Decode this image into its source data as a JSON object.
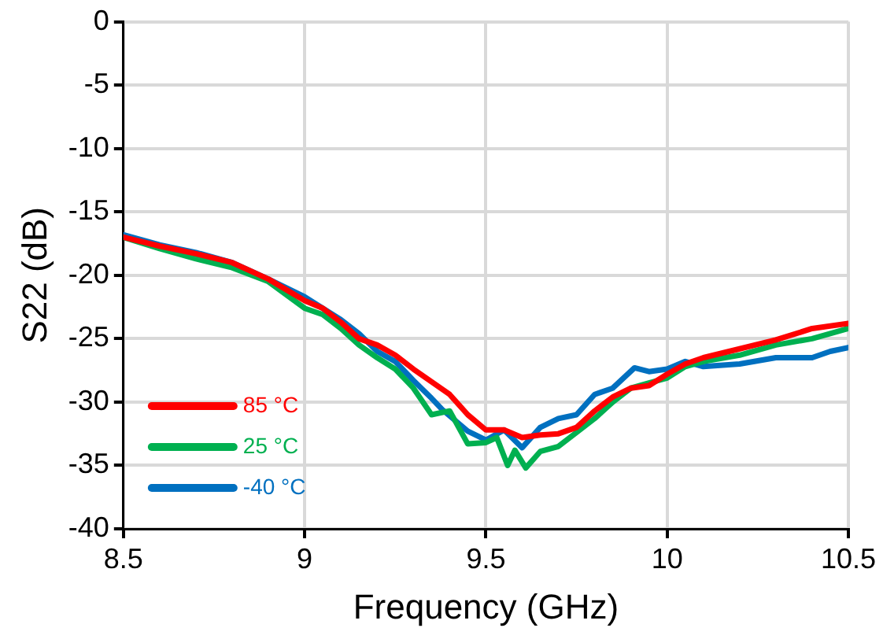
{
  "chart_data": {
    "type": "line",
    "xlabel": "Frequency (GHz)",
    "ylabel": "S22 (dB)",
    "xlim": [
      8.5,
      10.5
    ],
    "xticks": [
      8.5,
      9,
      9.5,
      10,
      10.5
    ],
    "ylim": [
      -40,
      0
    ],
    "yticks": [
      -40,
      -35,
      -30,
      -25,
      -20,
      -15,
      -10,
      -5,
      0
    ],
    "grid": true,
    "legend": "bottom left",
    "marker": "none",
    "line_style": "solid",
    "series": [
      {
        "name": "85 °C",
        "color": "#ff0000",
        "x": [
          8.5,
          8.6,
          8.7,
          8.8,
          8.9,
          9.0,
          9.05,
          9.1,
          9.15,
          9.2,
          9.25,
          9.3,
          9.35,
          9.4,
          9.45,
          9.5,
          9.55,
          9.6,
          9.65,
          9.7,
          9.75,
          9.8,
          9.85,
          9.9,
          9.95,
          10.0,
          10.05,
          10.1,
          10.2,
          10.3,
          10.4,
          10.5
        ],
        "values": [
          -17.0,
          -17.7,
          -18.3,
          -19.0,
          -20.3,
          -22.0,
          -22.6,
          -23.7,
          -25.0,
          -25.5,
          -26.3,
          -27.4,
          -28.4,
          -29.4,
          -31.0,
          -32.2,
          -32.2,
          -32.8,
          -32.6,
          -32.5,
          -32.0,
          -30.7,
          -29.6,
          -28.9,
          -28.7,
          -27.8,
          -27.0,
          -26.5,
          -25.8,
          -25.1,
          -24.2,
          -23.8
        ]
      },
      {
        "name": "25 °C",
        "color": "#00b050",
        "x": [
          8.5,
          8.6,
          8.7,
          8.8,
          8.9,
          9.0,
          9.05,
          9.1,
          9.15,
          9.2,
          9.25,
          9.3,
          9.35,
          9.4,
          9.45,
          9.5,
          9.53,
          9.56,
          9.58,
          9.61,
          9.65,
          9.7,
          9.75,
          9.8,
          9.85,
          9.9,
          9.95,
          10.0,
          10.05,
          10.1,
          10.2,
          10.3,
          10.4,
          10.5
        ],
        "values": [
          -17.0,
          -17.9,
          -18.7,
          -19.4,
          -20.5,
          -22.6,
          -23.1,
          -24.2,
          -25.5,
          -26.5,
          -27.4,
          -28.9,
          -31.0,
          -30.7,
          -33.3,
          -33.2,
          -32.8,
          -35.0,
          -33.8,
          -35.2,
          -33.9,
          -33.5,
          -32.4,
          -31.3,
          -30.0,
          -28.9,
          -28.5,
          -28.1,
          -27.2,
          -26.8,
          -26.3,
          -25.5,
          -25.0,
          -24.2
        ]
      },
      {
        "name": "-40 °C",
        "color": "#0070c0",
        "x": [
          8.5,
          8.6,
          8.7,
          8.8,
          8.9,
          9.0,
          9.1,
          9.15,
          9.2,
          9.25,
          9.3,
          9.35,
          9.38,
          9.45,
          9.5,
          9.55,
          9.6,
          9.65,
          9.7,
          9.75,
          9.8,
          9.85,
          9.91,
          9.95,
          10.0,
          10.05,
          10.1,
          10.2,
          10.3,
          10.4,
          10.45,
          10.5
        ],
        "values": [
          -16.8,
          -17.6,
          -18.2,
          -19.0,
          -20.3,
          -21.7,
          -23.5,
          -24.6,
          -26.0,
          -26.8,
          -28.3,
          -29.7,
          -30.6,
          -32.3,
          -33.0,
          -32.2,
          -33.6,
          -32.0,
          -31.3,
          -31.0,
          -29.4,
          -28.9,
          -27.3,
          -27.6,
          -27.4,
          -26.8,
          -27.2,
          -27.0,
          -26.5,
          -26.5,
          -26.0,
          -25.7
        ]
      }
    ]
  }
}
